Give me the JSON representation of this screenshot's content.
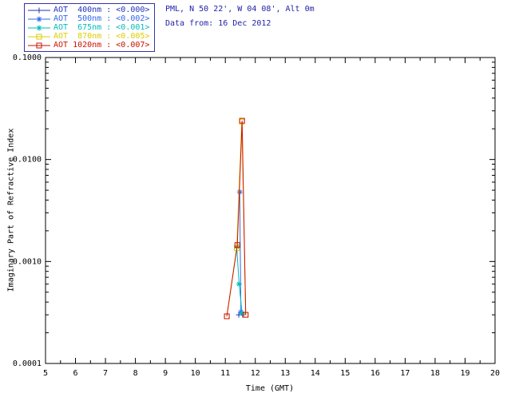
{
  "header": {
    "line1": "PML, N 50 22', W 04 08', Alt 0m",
    "line2": "Data from: 16 Dec 2012"
  },
  "legend": {
    "rows": [
      {
        "label": "AOT  400nm : ",
        "value": "<0.000>"
      },
      {
        "label": "AOT  500nm : ",
        "value": "<0.002>"
      },
      {
        "label": "AOT  675nm : ",
        "value": "<0.001>"
      },
      {
        "label": "AOT  870nm : ",
        "value": "<0.005>"
      },
      {
        "label": "AOT 1020nm : ",
        "value": "<0.007>"
      }
    ]
  },
  "colors": {
    "background": "#ffffff",
    "axis": "#000000",
    "header_text": "#2222aa",
    "legend_border": "#3333aa"
  },
  "chart_data": {
    "type": "line",
    "title": "",
    "xlabel": "Time (GMT)",
    "ylabel": "Imaginary Part of Refractive Index",
    "x_range": [
      5,
      20
    ],
    "x_tick_labels": [
      "5",
      "6",
      "7",
      "8",
      "9",
      "10",
      "11",
      "12",
      "13",
      "14",
      "15",
      "16",
      "17",
      "18",
      "19",
      "20"
    ],
    "y_scale": "log",
    "y_range": [
      0.0001,
      0.1
    ],
    "y_tick_labels": [
      "0.0001",
      "0.0010",
      "0.0100",
      "0.1000"
    ],
    "grid": false,
    "legend_position": "top-left",
    "series": [
      {
        "name": "AOT 400nm",
        "color": "#2233bb",
        "marker": "plus",
        "points": [
          [
            11.45,
            0.0003
          ],
          [
            11.58,
            0.0003
          ]
        ]
      },
      {
        "name": "AOT 500nm",
        "color": "#3366ee",
        "marker": "asterisk",
        "points": [
          [
            11.48,
            0.0048
          ],
          [
            11.52,
            0.00032
          ]
        ]
      },
      {
        "name": "AOT 675nm",
        "color": "#00bbbb",
        "marker": "asterisk",
        "points": [
          [
            11.38,
            0.0014
          ],
          [
            11.46,
            0.0006
          ],
          [
            11.56,
            0.00031
          ]
        ]
      },
      {
        "name": "AOT 870nm",
        "color": "#ddcc00",
        "marker": "square",
        "points": [
          [
            11.05,
            0.00029
          ],
          [
            11.38,
            0.00135
          ],
          [
            11.55,
            0.0235
          ],
          [
            11.68,
            0.0003
          ]
        ]
      },
      {
        "name": "AOT 1020nm",
        "color": "#cc1100",
        "marker": "square",
        "points": [
          [
            11.05,
            0.00029
          ],
          [
            11.4,
            0.00145
          ],
          [
            11.56,
            0.024
          ],
          [
            11.68,
            0.0003
          ]
        ]
      }
    ]
  }
}
